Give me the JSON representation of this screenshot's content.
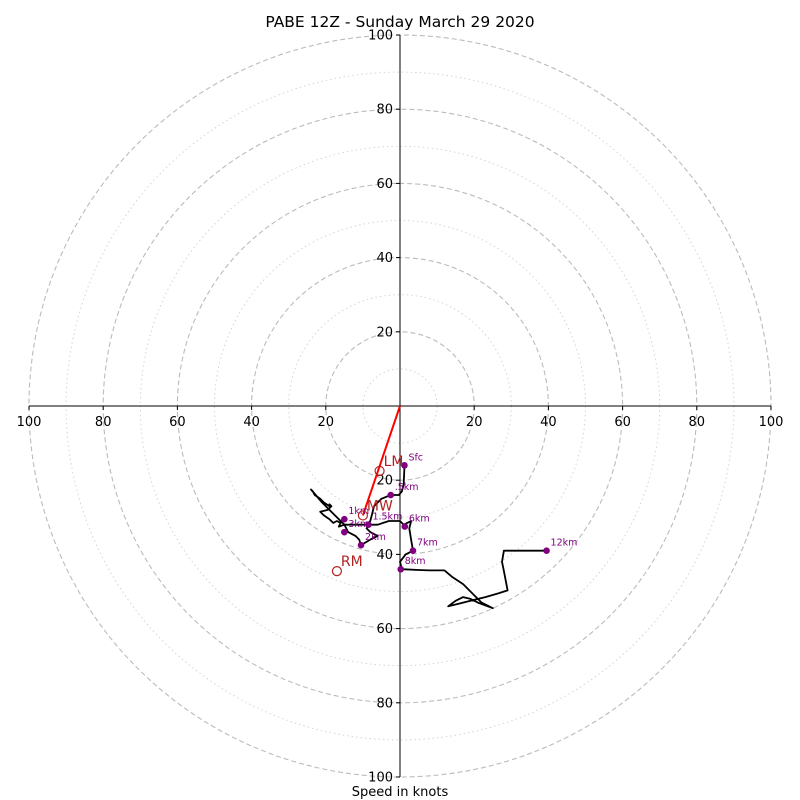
{
  "chart_data": {
    "type": "hodograph",
    "title": "PABE 12Z - Sunday March 29 2020",
    "xlabel": "Speed in knots",
    "units": "knots",
    "range": [
      -100,
      100
    ],
    "rings": {
      "major": [
        20,
        40,
        60,
        80,
        100
      ],
      "minor": [
        10,
        30,
        50,
        70,
        90
      ],
      "major_color": "#bbbbbb",
      "minor_color": "#d4d4d4"
    },
    "ticks": {
      "top": [
        "20",
        "40",
        "60",
        "80",
        "100"
      ],
      "bottom": [
        "20",
        "40",
        "60",
        "80",
        "100"
      ],
      "left": [
        "20",
        "40",
        "60",
        "80",
        "100"
      ],
      "right": [
        "20",
        "40",
        "60",
        "80",
        "100"
      ]
    },
    "trace": {
      "color": "#000000",
      "points": [
        [
          1.2,
          -16
        ],
        [
          1,
          -21
        ],
        [
          0.5,
          -23
        ],
        [
          -0.3,
          -24
        ],
        [
          -2.5,
          -24
        ],
        [
          -5,
          -25
        ],
        [
          -7,
          -27
        ],
        [
          -7.5,
          -29
        ],
        [
          -8,
          -31
        ],
        [
          -9,
          -32
        ],
        [
          -12,
          -32
        ],
        [
          -15,
          -32
        ],
        [
          -16.5,
          -32.5
        ],
        [
          -16,
          -31.5
        ],
        [
          -17,
          -31
        ],
        [
          -18,
          -31.5
        ],
        [
          -19,
          -30.5
        ],
        [
          -20.5,
          -29.5
        ],
        [
          -21.5,
          -28.5
        ],
        [
          -19.5,
          -28
        ],
        [
          -18.5,
          -27
        ],
        [
          -19,
          -26.5
        ],
        [
          -19,
          -27
        ],
        [
          -20.5,
          -26
        ],
        [
          -21.5,
          -25
        ],
        [
          -23,
          -24
        ],
        [
          -23.5,
          -23
        ],
        [
          -24,
          -22.5
        ],
        [
          -21,
          -26
        ],
        [
          -18,
          -29
        ],
        [
          -15,
          -32
        ],
        [
          -14,
          -34
        ],
        [
          -12,
          -35
        ],
        [
          -11,
          -36
        ],
        [
          -10.5,
          -37.5
        ],
        [
          -8,
          -36
        ],
        [
          -6,
          -35
        ],
        [
          -8,
          -34
        ],
        [
          -9,
          -33
        ],
        [
          -8.5,
          -32
        ],
        [
          -6,
          -32
        ],
        [
          -3,
          -31
        ],
        [
          0,
          -31
        ],
        [
          1,
          -32
        ],
        [
          3,
          -31
        ],
        [
          2.5,
          -33
        ],
        [
          3,
          -36
        ],
        [
          3.5,
          -39
        ],
        [
          1.5,
          -40
        ],
        [
          0,
          -42
        ],
        [
          0.5,
          -44
        ],
        [
          5,
          -44.2
        ],
        [
          8,
          -44.3
        ],
        [
          12,
          -44.3
        ],
        [
          14,
          -46
        ],
        [
          17,
          -48
        ],
        [
          20,
          -51
        ],
        [
          22,
          -53
        ],
        [
          25,
          -54.5
        ],
        [
          21,
          -53
        ],
        [
          19,
          -52
        ],
        [
          17,
          -51.5
        ],
        [
          15,
          -52.5
        ],
        [
          13,
          -54
        ],
        [
          15,
          -53.5
        ],
        [
          19,
          -52.5
        ],
        [
          23,
          -51.5
        ],
        [
          26.5,
          -50.5
        ],
        [
          29,
          -49.7
        ],
        [
          28.5,
          -47
        ],
        [
          28,
          -44.5
        ],
        [
          27.5,
          -42
        ],
        [
          28,
          -39
        ],
        [
          32,
          -39
        ],
        [
          36,
          -39
        ],
        [
          39.5,
          -39
        ]
      ]
    },
    "heights": [
      {
        "label": "Sfc",
        "u": 1.2,
        "v": -16
      },
      {
        "label": ".5km",
        "u": -2.5,
        "v": -24
      },
      {
        "label": "1km",
        "u": -15,
        "v": -30.5
      },
      {
        "label": "1.5km",
        "u": -8.5,
        "v": -32
      },
      {
        "label": "2km",
        "u": -10.5,
        "v": -37.5
      },
      {
        "label": "3km",
        "u": -15,
        "v": -34
      },
      {
        "label": "6km",
        "u": 1.3,
        "v": -32.5
      },
      {
        "label": "7km",
        "u": 3.5,
        "v": -39
      },
      {
        "label": "8km",
        "u": 0.2,
        "v": -44
      },
      {
        "label": "12km",
        "u": 39.5,
        "v": -39
      }
    ],
    "height_marker_color": "#800080",
    "motions": [
      {
        "label": "LM",
        "u": -5.5,
        "v": -17.5
      },
      {
        "label": "MW",
        "u": -10,
        "v": -29.5
      },
      {
        "label": "RM",
        "u": -17,
        "v": -44.5
      }
    ],
    "motion_color": "#b22222",
    "mean_wind_vector": {
      "u": -10,
      "v": -29.5,
      "color": "#ff0000"
    }
  }
}
